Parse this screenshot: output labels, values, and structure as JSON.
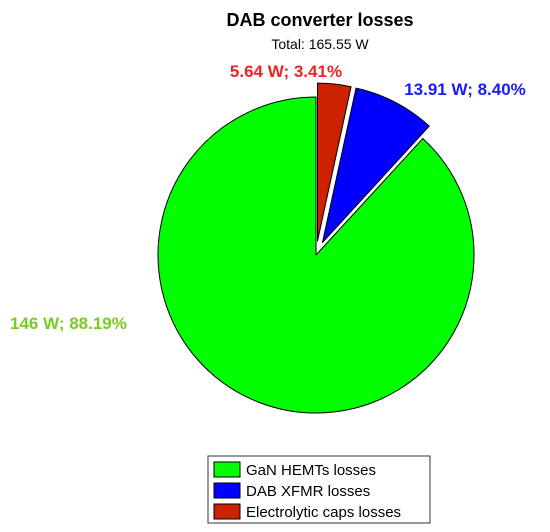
{
  "chart_data": {
    "type": "pie",
    "title": "DAB converter losses",
    "subtitle": "Total: 165.55 W",
    "slices": [
      {
        "name": "GaN HEMTs losses",
        "value": 146.0,
        "percent": 88.19,
        "label": "146 W; 88.19%",
        "color": "#00ff00",
        "label_color": "#77cc22",
        "exploded": false
      },
      {
        "name": "Electrolytic caps losses",
        "value": 5.64,
        "percent": 3.41,
        "label": "5.64 W; 3.41%",
        "color": "#cc2200",
        "label_color": "#ee2222",
        "exploded": true
      },
      {
        "name": "DAB XFMR losses",
        "value": 13.91,
        "percent": 8.4,
        "label": "13.91 W; 8.40%",
        "color": "#0000ff",
        "label_color": "#1a1aff",
        "exploded": true
      }
    ],
    "legend": {
      "position": "bottom",
      "entries": [
        "GaN HEMTs losses",
        "DAB XFMR losses",
        "Electrolytic caps losses"
      ]
    }
  }
}
